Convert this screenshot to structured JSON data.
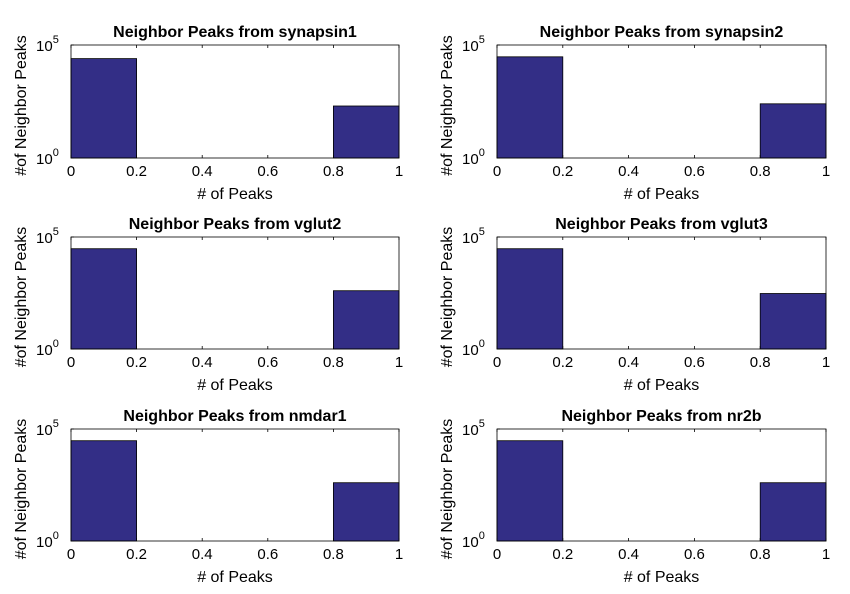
{
  "chart_data": [
    {
      "type": "bar",
      "title": "Neighbor Peaks from synapsin1",
      "xlabel": "# of Peaks",
      "ylabel": "#of Neighbor Peaks",
      "xlim": [
        0,
        1
      ],
      "ylim": [
        1,
        100000
      ],
      "yscale": "log",
      "xticks": [
        "0",
        "0.2",
        "0.4",
        "0.6",
        "0.8",
        "1"
      ],
      "yticks": [
        {
          "base": "10",
          "exp": "0",
          "value": 1
        },
        {
          "base": "10",
          "exp": "5",
          "value": 100000
        }
      ],
      "bars": [
        {
          "x0": 0,
          "x1": 0.2,
          "value": 25000
        },
        {
          "x0": 0.8,
          "x1": 1,
          "value": 200
        }
      ],
      "bar_color": "#332e86"
    },
    {
      "type": "bar",
      "title": "Neighbor Peaks from synapsin2",
      "xlabel": "# of Peaks",
      "ylabel": "#of Neighbor Peaks",
      "xlim": [
        0,
        1
      ],
      "ylim": [
        1,
        100000
      ],
      "yscale": "log",
      "xticks": [
        "0",
        "0.2",
        "0.4",
        "0.6",
        "0.8",
        "1"
      ],
      "yticks": [
        {
          "base": "10",
          "exp": "0",
          "value": 1
        },
        {
          "base": "10",
          "exp": "5",
          "value": 100000
        }
      ],
      "bars": [
        {
          "x0": 0,
          "x1": 0.2,
          "value": 30000
        },
        {
          "x0": 0.8,
          "x1": 1,
          "value": 250
        }
      ],
      "bar_color": "#332e86"
    },
    {
      "type": "bar",
      "title": "Neighbor Peaks from vglut2",
      "xlabel": "# of Peaks",
      "ylabel": "#of Neighbor Peaks",
      "xlim": [
        0,
        1
      ],
      "ylim": [
        1,
        100000
      ],
      "yscale": "log",
      "xticks": [
        "0",
        "0.2",
        "0.4",
        "0.6",
        "0.8",
        "1"
      ],
      "yticks": [
        {
          "base": "10",
          "exp": "0",
          "value": 1
        },
        {
          "base": "10",
          "exp": "5",
          "value": 100000
        }
      ],
      "bars": [
        {
          "x0": 0,
          "x1": 0.2,
          "value": 30000
        },
        {
          "x0": 0.8,
          "x1": 1,
          "value": 400
        }
      ],
      "bar_color": "#332e86"
    },
    {
      "type": "bar",
      "title": "Neighbor Peaks from vglut3",
      "xlabel": "# of Peaks",
      "ylabel": "#of Neighbor Peaks",
      "xlim": [
        0,
        1
      ],
      "ylim": [
        1,
        100000
      ],
      "yscale": "log",
      "xticks": [
        "0",
        "0.2",
        "0.4",
        "0.6",
        "0.8",
        "1"
      ],
      "yticks": [
        {
          "base": "10",
          "exp": "0",
          "value": 1
        },
        {
          "base": "10",
          "exp": "5",
          "value": 100000
        }
      ],
      "bars": [
        {
          "x0": 0,
          "x1": 0.2,
          "value": 30000
        },
        {
          "x0": 0.8,
          "x1": 1,
          "value": 300
        }
      ],
      "bar_color": "#332e86"
    },
    {
      "type": "bar",
      "title": "Neighbor Peaks from nmdar1",
      "xlabel": "# of Peaks",
      "ylabel": "#of Neighbor Peaks",
      "xlim": [
        0,
        1
      ],
      "ylim": [
        1,
        100000
      ],
      "yscale": "log",
      "xticks": [
        "0",
        "0.2",
        "0.4",
        "0.6",
        "0.8",
        "1"
      ],
      "yticks": [
        {
          "base": "10",
          "exp": "0",
          "value": 1
        },
        {
          "base": "10",
          "exp": "5",
          "value": 100000
        }
      ],
      "bars": [
        {
          "x0": 0,
          "x1": 0.2,
          "value": 30000
        },
        {
          "x0": 0.8,
          "x1": 1,
          "value": 400
        }
      ],
      "bar_color": "#332e86"
    },
    {
      "type": "bar",
      "title": "Neighbor Peaks from nr2b",
      "xlabel": "# of Peaks",
      "ylabel": "#of Neighbor Peaks",
      "xlim": [
        0,
        1
      ],
      "ylim": [
        1,
        100000
      ],
      "yscale": "log",
      "xticks": [
        "0",
        "0.2",
        "0.4",
        "0.6",
        "0.8",
        "1"
      ],
      "yticks": [
        {
          "base": "10",
          "exp": "0",
          "value": 1
        },
        {
          "base": "10",
          "exp": "5",
          "value": 100000
        }
      ],
      "bars": [
        {
          "x0": 0,
          "x1": 0.2,
          "value": 30000
        },
        {
          "x0": 0.8,
          "x1": 1,
          "value": 400
        }
      ],
      "bar_color": "#332e86"
    }
  ]
}
